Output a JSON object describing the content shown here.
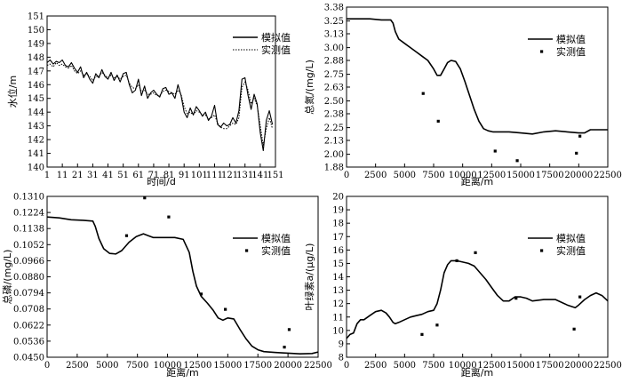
{
  "chart_data": [
    {
      "id": "water-level",
      "type": "line",
      "xlabel": "时间/d",
      "ylabel": "水位/m",
      "xlim": [
        1,
        151
      ],
      "ylim": [
        140,
        151
      ],
      "xticks": [
        1,
        11,
        21,
        31,
        41,
        51,
        61,
        71,
        81,
        91,
        101,
        111,
        121,
        131,
        141,
        151
      ],
      "yticks": [
        140,
        141,
        142,
        143,
        144,
        145,
        146,
        147,
        148,
        149,
        150,
        151
      ],
      "legend_position": "top-right",
      "series": [
        {
          "name": "模拟值",
          "style": "solid",
          "x": [
            1,
            3,
            5,
            7,
            9,
            11,
            13,
            15,
            17,
            19,
            21,
            23,
            25,
            27,
            29,
            31,
            33,
            35,
            37,
            39,
            41,
            43,
            45,
            47,
            49,
            51,
            53,
            55,
            57,
            59,
            61,
            63,
            65,
            67,
            69,
            71,
            73,
            75,
            77,
            79,
            81,
            83,
            85,
            87,
            89,
            91,
            93,
            95,
            97,
            99,
            101,
            103,
            105,
            107,
            109,
            111,
            113,
            115,
            117,
            119,
            121,
            123,
            125,
            127,
            129,
            131,
            133,
            135,
            137,
            139,
            141,
            143,
            145,
            147,
            149
          ],
          "y": [
            147.6,
            147.8,
            147.5,
            147.7,
            147.6,
            147.8,
            147.4,
            147.3,
            147.6,
            147.2,
            146.9,
            147.3,
            146.5,
            146.9,
            146.4,
            146.1,
            146.8,
            146.5,
            147.1,
            146.6,
            146.4,
            146.9,
            146.3,
            146.7,
            146.2,
            146.8,
            146.9,
            146.0,
            145.4,
            145.6,
            146.4,
            145.2,
            145.9,
            145.0,
            145.4,
            145.6,
            145.3,
            145.1,
            145.7,
            145.8,
            145.3,
            145.4,
            145.0,
            146.0,
            145.2,
            144.0,
            143.6,
            144.3,
            143.8,
            144.4,
            144.1,
            143.7,
            144.0,
            143.4,
            143.7,
            144.5,
            143.1,
            142.9,
            143.2,
            143.0,
            143.1,
            143.6,
            143.2,
            144.1,
            146.4,
            146.5,
            145.2,
            144.2,
            145.3,
            144.6,
            142.5,
            141.2,
            143.4,
            144.1,
            143.1
          ]
        },
        {
          "name": "实测值",
          "style": "dotted",
          "x": [
            1,
            3,
            5,
            7,
            9,
            11,
            13,
            15,
            17,
            19,
            21,
            23,
            25,
            27,
            29,
            31,
            33,
            35,
            37,
            39,
            41,
            43,
            45,
            47,
            49,
            51,
            53,
            55,
            57,
            59,
            61,
            63,
            65,
            67,
            69,
            71,
            73,
            75,
            77,
            79,
            81,
            83,
            85,
            87,
            89,
            91,
            93,
            95,
            97,
            99,
            101,
            103,
            105,
            107,
            109,
            111,
            113,
            115,
            117,
            119,
            121,
            123,
            125,
            127,
            129,
            131,
            133,
            135,
            137,
            139,
            141,
            143,
            145,
            147,
            149
          ],
          "y": [
            147.4,
            147.5,
            147.3,
            147.6,
            147.4,
            147.5,
            147.3,
            147.2,
            147.4,
            147.0,
            146.8,
            147.0,
            146.7,
            146.8,
            146.6,
            146.3,
            146.6,
            146.6,
            146.9,
            146.7,
            146.5,
            146.7,
            146.5,
            146.6,
            146.4,
            146.6,
            146.7,
            146.1,
            145.8,
            145.7,
            146.0,
            145.5,
            145.6,
            145.3,
            145.3,
            145.4,
            145.2,
            145.2,
            145.5,
            145.6,
            145.5,
            145.4,
            145.3,
            145.6,
            145.3,
            144.4,
            143.9,
            144.0,
            143.8,
            144.1,
            144.0,
            143.8,
            143.8,
            143.5,
            143.6,
            143.8,
            143.2,
            142.9,
            142.8,
            142.8,
            143.0,
            143.2,
            143.1,
            143.6,
            145.8,
            146.2,
            145.6,
            144.6,
            145.0,
            144.5,
            143.0,
            141.6,
            142.8,
            143.6,
            142.8
          ]
        }
      ]
    },
    {
      "id": "total-nitrogen",
      "type": "line",
      "xlabel": "距离/m",
      "ylabel": "总氮/(mg/L)",
      "xlim": [
        0,
        22500
      ],
      "ylim": [
        1.88,
        3.38
      ],
      "xticks": [
        0,
        2500,
        5000,
        7500,
        10000,
        12500,
        15000,
        17500,
        20000,
        22500
      ],
      "yticks": [
        "1.88",
        "2.00",
        "2.13",
        "2.25",
        "2.38",
        "2.50",
        "2.63",
        "2.75",
        "2.88",
        "3.00",
        "3.13",
        "3.25",
        "3.38"
      ],
      "legend_position": "top-right",
      "series": [
        {
          "name": "模拟值",
          "style": "solid",
          "x": [
            0,
            1000,
            2000,
            3000,
            3800,
            4000,
            4200,
            4500,
            5000,
            5500,
            6000,
            6500,
            7000,
            7500,
            7800,
            8100,
            8400,
            8700,
            9000,
            9400,
            9800,
            10200,
            10600,
            11000,
            11400,
            11800,
            12200,
            12600,
            13000,
            14000,
            15000,
            16000,
            17000,
            18000,
            19000,
            20000,
            20500,
            21000,
            22000,
            22500
          ],
          "y": [
            3.27,
            3.27,
            3.27,
            3.26,
            3.26,
            3.23,
            3.15,
            3.08,
            3.04,
            3.0,
            2.96,
            2.92,
            2.88,
            2.8,
            2.74,
            2.74,
            2.8,
            2.86,
            2.88,
            2.87,
            2.8,
            2.68,
            2.55,
            2.42,
            2.31,
            2.24,
            2.22,
            2.21,
            2.21,
            2.21,
            2.2,
            2.19,
            2.21,
            2.22,
            2.21,
            2.2,
            2.2,
            2.23,
            2.23,
            2.23
          ]
        },
        {
          "name": "实测值",
          "style": "point",
          "x": [
            6600,
            7900,
            12800,
            14700,
            19800,
            20100
          ],
          "y": [
            2.57,
            2.31,
            2.03,
            1.94,
            2.01,
            2.17
          ]
        }
      ]
    },
    {
      "id": "total-phosphorus",
      "type": "line",
      "xlabel": "距离/m",
      "ylabel": "总磷/(mg/L)",
      "xlim": [
        0,
        22500
      ],
      "ylim": [
        0.045,
        0.131
      ],
      "xticks": [
        0,
        2500,
        5000,
        7500,
        10000,
        12500,
        15000,
        17500,
        20000,
        22500
      ],
      "yticks": [
        "0.0450",
        "0.0536",
        "0.0622",
        "0.0708",
        "0.0794",
        "0.0880",
        "0.0966",
        "0.1052",
        "0.1138",
        "0.1224",
        "0.1310"
      ],
      "legend_position": "right",
      "series": [
        {
          "name": "模拟值",
          "style": "solid",
          "x": [
            0,
            1000,
            2000,
            3000,
            3800,
            4000,
            4300,
            4700,
            5200,
            5700,
            6200,
            6800,
            7400,
            8000,
            8400,
            8800,
            9600,
            10600,
            11300,
            11800,
            12100,
            12400,
            12800,
            13300,
            13800,
            14200,
            14600,
            15000,
            15500,
            16000,
            16500,
            17000,
            17500,
            18000,
            19000,
            20000,
            21000,
            22000,
            22500
          ],
          "y": [
            0.12,
            0.1195,
            0.1185,
            0.1182,
            0.1178,
            0.115,
            0.1085,
            0.103,
            0.1005,
            0.1002,
            0.102,
            0.1065,
            0.1095,
            0.111,
            0.11,
            0.109,
            0.109,
            0.109,
            0.108,
            0.101,
            0.091,
            0.083,
            0.0775,
            0.074,
            0.07,
            0.066,
            0.0648,
            0.066,
            0.0655,
            0.06,
            0.055,
            0.051,
            0.049,
            0.048,
            0.0475,
            0.0472,
            0.0468,
            0.047,
            0.0478
          ]
        },
        {
          "name": "实测值",
          "style": "point",
          "x": [
            6600,
            8100,
            10100,
            12800,
            14800,
            19700,
            20100
          ],
          "y": [
            0.11,
            0.1302,
            0.12,
            0.0788,
            0.0706,
            0.0504,
            0.0598
          ]
        }
      ]
    },
    {
      "id": "chlorophyll-a",
      "type": "line",
      "xlabel": "距离/m",
      "ylabel": "叶绿素a/(μg/L)",
      "xlim": [
        0,
        22500
      ],
      "ylim": [
        8,
        20
      ],
      "xticks": [
        0,
        2500,
        5000,
        7500,
        10000,
        12500,
        15000,
        17500,
        20000,
        22500
      ],
      "yticks": [
        8,
        9,
        10,
        11,
        12,
        13,
        14,
        15,
        16,
        17,
        18,
        19,
        20
      ],
      "legend_position": "top-right",
      "series": [
        {
          "name": "模拟值",
          "style": "solid",
          "x": [
            0,
            300,
            600,
            900,
            1200,
            1500,
            2000,
            2500,
            3000,
            3400,
            3700,
            4000,
            4200,
            4500,
            5000,
            5500,
            6000,
            6500,
            7000,
            7500,
            7800,
            8100,
            8400,
            8700,
            9000,
            9500,
            10000,
            10500,
            11000,
            11500,
            12000,
            12500,
            13000,
            13500,
            14000,
            14500,
            15000,
            15500,
            16000,
            17000,
            18000,
            19000,
            19700,
            20000,
            20500,
            21000,
            21500,
            22000,
            22500
          ],
          "y": [
            9.4,
            9.7,
            9.8,
            10.5,
            10.8,
            10.8,
            11.1,
            11.4,
            11.5,
            11.3,
            11.0,
            10.6,
            10.5,
            10.6,
            10.8,
            11.0,
            11.1,
            11.2,
            11.4,
            11.5,
            12.0,
            13.0,
            14.3,
            14.9,
            15.2,
            15.2,
            15.1,
            15.0,
            14.8,
            14.3,
            13.8,
            13.2,
            12.6,
            12.2,
            12.2,
            12.5,
            12.5,
            12.4,
            12.2,
            12.3,
            12.3,
            11.9,
            11.7,
            11.9,
            12.3,
            12.6,
            12.8,
            12.6,
            12.2
          ]
        },
        {
          "name": "实测值",
          "style": "point",
          "x": [
            6500,
            7800,
            9500,
            11100,
            14600,
            19600,
            20100
          ],
          "y": [
            9.7,
            10.4,
            15.2,
            15.8,
            12.4,
            10.1,
            12.5
          ]
        }
      ]
    }
  ]
}
